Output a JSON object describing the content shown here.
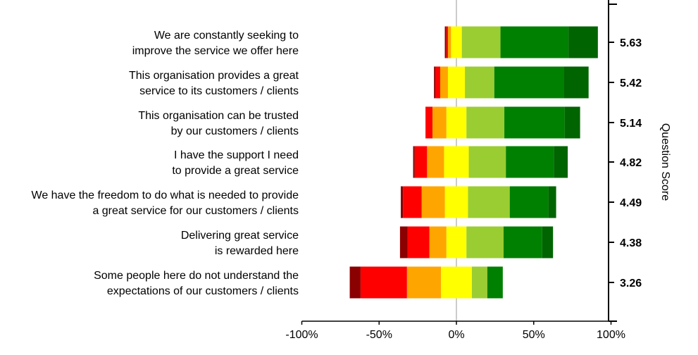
{
  "chart_data": {
    "type": "bar",
    "subtype": "diverging-stacked",
    "title": "",
    "xlabel": "",
    "ylabel_right": "Question Score",
    "x_ticks": [
      "-100%",
      "-50%",
      "0%",
      "50%",
      "100%"
    ],
    "xlim": [
      -100,
      100
    ],
    "grid": false,
    "colors": {
      "negative": [
        "#8b0000",
        "#ff0000",
        "#ffa500"
      ],
      "neutral": "#ffff00",
      "positive": [
        "#9acd32",
        "#008000",
        "#006400"
      ],
      "zero_line": "#cccccc",
      "axis": "#000000",
      "text": "#000000"
    },
    "rows": [
      {
        "label_line1": "We are constantly seeking to",
        "label_line2": "improve the service we offer here",
        "score": "5.63",
        "negative": [
          1,
          1,
          2
        ],
        "neutral": 7,
        "positive": [
          25,
          44,
          19
        ]
      },
      {
        "label_line1": "This organisation provides a great",
        "label_line2": "service to its customers / clients",
        "score": "5.42",
        "negative": [
          1,
          3,
          5
        ],
        "neutral": 11,
        "positive": [
          19,
          45,
          16
        ]
      },
      {
        "label_line1": "This organisation can be trusted",
        "label_line2": "by our customers / clients",
        "score": "5.14",
        "negative": [
          0,
          4.5,
          9
        ],
        "neutral": 13,
        "positive": [
          24.5,
          39,
          10
        ]
      },
      {
        "label_line1": "I have the support I need",
        "label_line2": "to provide a great service",
        "score": "4.82",
        "negative": [
          1,
          8,
          11
        ],
        "neutral": 16,
        "positive": [
          24,
          31,
          9
        ]
      },
      {
        "label_line1": "We have the freedom to do what is needed to provide",
        "label_line2": "a great service for our customers / clients",
        "score": "4.49",
        "negative": [
          1.5,
          12,
          15
        ],
        "neutral": 15,
        "positive": [
          27,
          25,
          5
        ]
      },
      {
        "label_line1": "Delivering great service",
        "label_line2": "is rewarded here",
        "score": "4.38",
        "negative": [
          5,
          14,
          11
        ],
        "neutral": 13,
        "positive": [
          24,
          25,
          7
        ]
      },
      {
        "label_line1": "Some people here do not understand the",
        "label_line2": "expectations of our customers / clients",
        "score": "3.26",
        "negative": [
          7,
          30,
          22
        ],
        "neutral": 20,
        "positive": [
          10,
          10,
          0
        ]
      }
    ]
  }
}
